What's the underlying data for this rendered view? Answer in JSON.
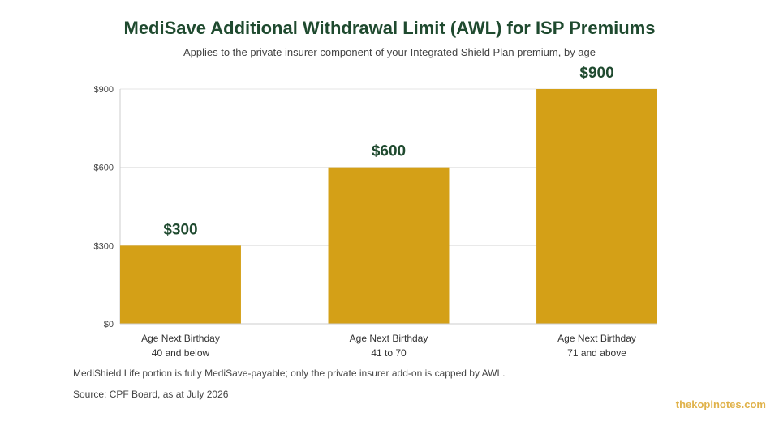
{
  "chart_data": {
    "type": "bar",
    "title": "MediSave Additional Withdrawal Limit (AWL) for ISP Premiums",
    "subtitle": "Applies to the private insurer component of your Integrated Shield Plan premium, by age",
    "categories": [
      [
        "Age Next Birthday",
        "40 and below"
      ],
      [
        "Age Next Birthday",
        "41 to 70"
      ],
      [
        "Age Next Birthday",
        "71 and above"
      ]
    ],
    "values": [
      300,
      600,
      900
    ],
    "data_labels": [
      "$300",
      "$600",
      "$900"
    ],
    "yticks": [
      0,
      300,
      600,
      900
    ],
    "ytick_labels": [
      "$0",
      "$300",
      "$600",
      "$900"
    ],
    "ylim": [
      0,
      900
    ],
    "xlabel": "",
    "ylabel": "",
    "grid": true,
    "legend": "none",
    "bar_color": "#d4a017",
    "label_color": "#1f4a2f"
  },
  "footer": {
    "note": "MediShield Life portion is fully MediSave-payable; only the private insurer add-on is capped by AWL.",
    "source": "Source: CPF Board, as at July 2026",
    "watermark": "thekopinotes.com"
  }
}
